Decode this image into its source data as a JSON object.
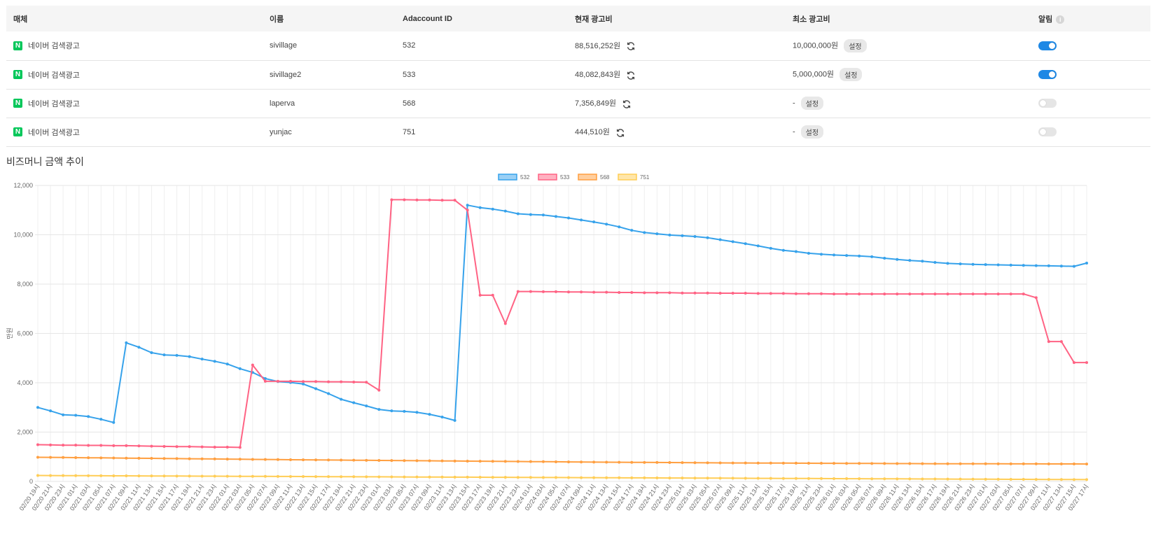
{
  "table": {
    "headers": {
      "media": "매체",
      "name": "이름",
      "adaccount_id": "Adaccount ID",
      "current_cost": "현재 광고비",
      "min_cost": "최소 광고비",
      "alert": "알림"
    },
    "rows": [
      {
        "icon": "N",
        "media": "네이버 검색광고",
        "name": "sivillage",
        "adaccount_id": "532",
        "current_cost": "88,516,252원",
        "min_cost": "10,000,000원",
        "set_label": "설정",
        "alert_on": true
      },
      {
        "icon": "N",
        "media": "네이버 검색광고",
        "name": "sivillage2",
        "adaccount_id": "533",
        "current_cost": "48,082,843원",
        "min_cost": "5,000,000원",
        "set_label": "설정",
        "alert_on": true
      },
      {
        "icon": "N",
        "media": "네이버 검색광고",
        "name": "laperva",
        "adaccount_id": "568",
        "current_cost": "7,356,849원",
        "min_cost": "-",
        "set_label": "설정",
        "alert_on": false
      },
      {
        "icon": "N",
        "media": "네이버 검색광고",
        "name": "yunjac",
        "adaccount_id": "751",
        "current_cost": "444,510원",
        "min_cost": "-",
        "set_label": "설정",
        "alert_on": false
      }
    ]
  },
  "section_title": "비즈머니 금액 추이",
  "chart_data": {
    "type": "line",
    "ylabel": "만원",
    "ylim": [
      0,
      12000
    ],
    "yticks": [
      0,
      2000,
      4000,
      6000,
      8000,
      10000,
      12000
    ],
    "grid": true,
    "legend_position": "top-center",
    "x": [
      "02/20 19시",
      "02/20 21시",
      "02/20 23시",
      "02/21 01시",
      "02/21 03시",
      "02/21 05시",
      "02/21 07시",
      "02/21 09시",
      "02/21 11시",
      "02/21 13시",
      "02/21 15시",
      "02/21 17시",
      "02/21 19시",
      "02/21 21시",
      "02/21 23시",
      "02/22 01시",
      "02/22 03시",
      "02/22 05시",
      "02/22 07시",
      "02/22 09시",
      "02/22 11시",
      "02/22 13시",
      "02/22 15시",
      "02/22 17시",
      "02/22 19시",
      "02/22 21시",
      "02/22 23시",
      "02/23 01시",
      "02/23 03시",
      "02/23 05시",
      "02/23 07시",
      "02/23 09시",
      "02/23 11시",
      "02/23 13시",
      "02/23 15시",
      "02/23 17시",
      "02/23 19시",
      "02/23 21시",
      "02/23 23시",
      "02/24 01시",
      "02/24 03시",
      "02/24 05시",
      "02/24 07시",
      "02/24 09시",
      "02/24 11시",
      "02/24 13시",
      "02/24 15시",
      "02/24 17시",
      "02/24 19시",
      "02/24 21시",
      "02/24 23시",
      "02/25 01시",
      "02/25 03시",
      "02/25 05시",
      "02/25 07시",
      "02/25 09시",
      "02/25 11시",
      "02/25 13시",
      "02/25 15시",
      "02/25 17시",
      "02/25 19시",
      "02/25 21시",
      "02/25 23시",
      "02/26 01시",
      "02/26 03시",
      "02/26 05시",
      "02/26 07시",
      "02/26 09시",
      "02/26 11시",
      "02/26 13시",
      "02/26 15시",
      "02/26 17시",
      "02/26 19시",
      "02/26 21시",
      "02/26 23시",
      "02/27 01시",
      "02/27 03시",
      "02/27 05시",
      "02/27 07시",
      "02/27 09시",
      "02/27 11시",
      "02/27 13시",
      "02/27 15시",
      "02/27 17시"
    ],
    "series": [
      {
        "name": "532",
        "color": "#36a2eb",
        "fill": "#9ad0f5",
        "values": [
          3000,
          2860,
          2700,
          2680,
          2630,
          2520,
          2390,
          5620,
          5440,
          5220,
          5130,
          5110,
          5060,
          4960,
          4870,
          4760,
          4570,
          4420,
          4170,
          4050,
          4010,
          3950,
          3760,
          3560,
          3330,
          3190,
          3060,
          2920,
          2860,
          2840,
          2800,
          2720,
          2610,
          2470,
          11200,
          11100,
          11040,
          10960,
          10850,
          10820,
          10800,
          10740,
          10680,
          10600,
          10520,
          10430,
          10320,
          10180,
          10090,
          10040,
          9990,
          9960,
          9930,
          9880,
          9800,
          9720,
          9640,
          9550,
          9450,
          9370,
          9320,
          9250,
          9210,
          9180,
          9160,
          9140,
          9110,
          9050,
          9000,
          8960,
          8930,
          8880,
          8840,
          8820,
          8800,
          8790,
          8780,
          8770,
          8760,
          8750,
          8740,
          8730,
          8720,
          8850
        ]
      },
      {
        "name": "533",
        "color": "#ff6384",
        "fill": "#ffb1c1",
        "values": [
          1490,
          1480,
          1470,
          1470,
          1460,
          1460,
          1450,
          1450,
          1440,
          1430,
          1420,
          1410,
          1410,
          1400,
          1390,
          1390,
          1380,
          4720,
          4060,
          4060,
          4060,
          4050,
          4050,
          4040,
          4040,
          4030,
          4020,
          3700,
          11420,
          11420,
          11410,
          11410,
          11400,
          11400,
          11000,
          7550,
          7550,
          6400,
          7700,
          7700,
          7690,
          7690,
          7680,
          7680,
          7670,
          7670,
          7660,
          7660,
          7650,
          7650,
          7650,
          7640,
          7640,
          7640,
          7630,
          7630,
          7630,
          7620,
          7620,
          7620,
          7610,
          7610,
          7610,
          7600,
          7600,
          7600,
          7600,
          7600,
          7600,
          7600,
          7600,
          7600,
          7600,
          7600,
          7600,
          7600,
          7600,
          7600,
          7600,
          7450,
          5670,
          5670,
          4820,
          4820
        ]
      },
      {
        "name": "568",
        "color": "#ff9f40",
        "fill": "#ffcf9f",
        "values": [
          980,
          975,
          970,
          965,
          960,
          955,
          950,
          945,
          940,
          935,
          930,
          925,
          920,
          915,
          910,
          905,
          900,
          895,
          890,
          885,
          880,
          876,
          872,
          868,
          864,
          860,
          856,
          852,
          848,
          844,
          840,
          836,
          832,
          828,
          824,
          820,
          816,
          812,
          808,
          804,
          800,
          796,
          792,
          788,
          784,
          780,
          777,
          774,
          771,
          768,
          765,
          762,
          759,
          756,
          753,
          750,
          748,
          746,
          744,
          742,
          740,
          738,
          736,
          734,
          732,
          730,
          728,
          726,
          724,
          722,
          720,
          719,
          718,
          717,
          716,
          715,
          714,
          713,
          712,
          711,
          710,
          709,
          708,
          707
        ]
      },
      {
        "name": "751",
        "color": "#ffcd56",
        "fill": "#ffe6aa",
        "values": [
          240,
          238,
          236,
          234,
          232,
          230,
          228,
          226,
          224,
          222,
          220,
          218,
          216,
          214,
          212,
          210,
          208,
          206,
          204,
          202,
          200,
          198,
          196,
          194,
          192,
          190,
          188,
          186,
          184,
          182,
          180,
          178,
          176,
          174,
          172,
          170,
          168,
          166,
          164,
          162,
          160,
          158,
          156,
          154,
          152,
          150,
          148,
          146,
          144,
          142,
          140,
          138,
          136,
          134,
          132,
          130,
          128,
          126,
          124,
          122,
          120,
          118,
          116,
          114,
          112,
          110,
          108,
          106,
          104,
          102,
          100,
          98,
          96,
          94,
          92,
          90,
          88,
          86,
          84,
          82,
          80,
          78,
          76,
          75
        ]
      }
    ]
  }
}
